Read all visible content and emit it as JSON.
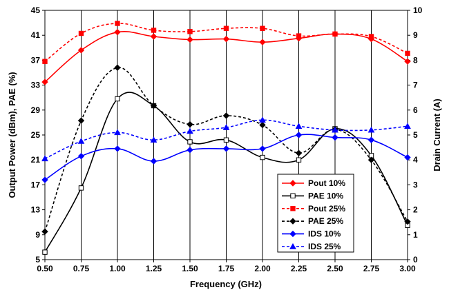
{
  "chart_data": {
    "type": "line",
    "title": "",
    "xlabel": "Frequency (GHz)",
    "ylabel_left": "Output Power (dBm), PAE (%)",
    "ylabel_right": "Drain Current (A)",
    "x_ticks": [
      "0.50",
      "0.75",
      "1.00",
      "1.25",
      "1.50",
      "1.75",
      "2.00",
      "2.25",
      "2.50",
      "2.75",
      "3.00"
    ],
    "y_left_ticks": [
      "5",
      "9",
      "13",
      "17",
      "21",
      "25",
      "29",
      "33",
      "37",
      "41",
      "45"
    ],
    "y_right_ticks": [
      "0",
      "1",
      "2",
      "3",
      "4",
      "5",
      "6",
      "7",
      "8",
      "9",
      "10"
    ],
    "xlim": [
      0.5,
      3.0
    ],
    "ylim_left": [
      5,
      45
    ],
    "ylim_right": [
      0,
      10
    ],
    "grid": "vertical",
    "legend_position": "bottom-right-inside",
    "x": [
      0.5,
      0.75,
      1.0,
      1.25,
      1.5,
      1.75,
      2.0,
      2.25,
      2.5,
      2.75,
      3.0
    ],
    "series": [
      {
        "name": "Pout 10%",
        "axis": "left",
        "color": "#ff0000",
        "dash": "solid",
        "marker": "diamond",
        "marker_fill": "#ff0000",
        "values": [
          33.5,
          38.6,
          41.5,
          40.8,
          40.3,
          40.4,
          39.9,
          40.5,
          41.2,
          40.4,
          36.8
        ]
      },
      {
        "name": "PAE 10%",
        "axis": "left",
        "color": "#000000",
        "dash": "solid",
        "marker": "square",
        "marker_fill": "#ffffff",
        "values": [
          6.2,
          16.5,
          30.8,
          29.7,
          23.9,
          24.2,
          21.4,
          21.0,
          26.0,
          21.7,
          10.5
        ]
      },
      {
        "name": "Pout 25%",
        "axis": "left",
        "color": "#ff0000",
        "dash": "dashed",
        "marker": "square",
        "marker_fill": "#ff0000",
        "values": [
          36.8,
          41.3,
          42.9,
          41.8,
          41.6,
          42.1,
          42.1,
          40.9,
          41.2,
          40.8,
          38.1
        ]
      },
      {
        "name": "PAE 25%",
        "axis": "left",
        "color": "#000000",
        "dash": "dashed",
        "marker": "diamond",
        "marker_fill": "#000000",
        "values": [
          9.5,
          27.3,
          35.8,
          29.7,
          26.7,
          28.1,
          26.6,
          22.1,
          25.9,
          21.0,
          11.1
        ]
      },
      {
        "name": "IDS 10%",
        "axis": "right",
        "color": "#0000ff",
        "dash": "solid",
        "marker": "diamond",
        "marker_fill": "#0000ff",
        "values": [
          3.2,
          4.15,
          4.45,
          3.95,
          4.4,
          4.45,
          4.45,
          5.0,
          4.9,
          4.8,
          4.1
        ]
      },
      {
        "name": "IDS 25%",
        "axis": "right",
        "color": "#0000ff",
        "dash": "dashed",
        "marker": "triangle",
        "marker_fill": "#0000ff",
        "values": [
          4.05,
          4.75,
          5.1,
          4.8,
          5.15,
          5.3,
          5.6,
          5.35,
          5.2,
          5.2,
          5.35
        ]
      }
    ]
  }
}
